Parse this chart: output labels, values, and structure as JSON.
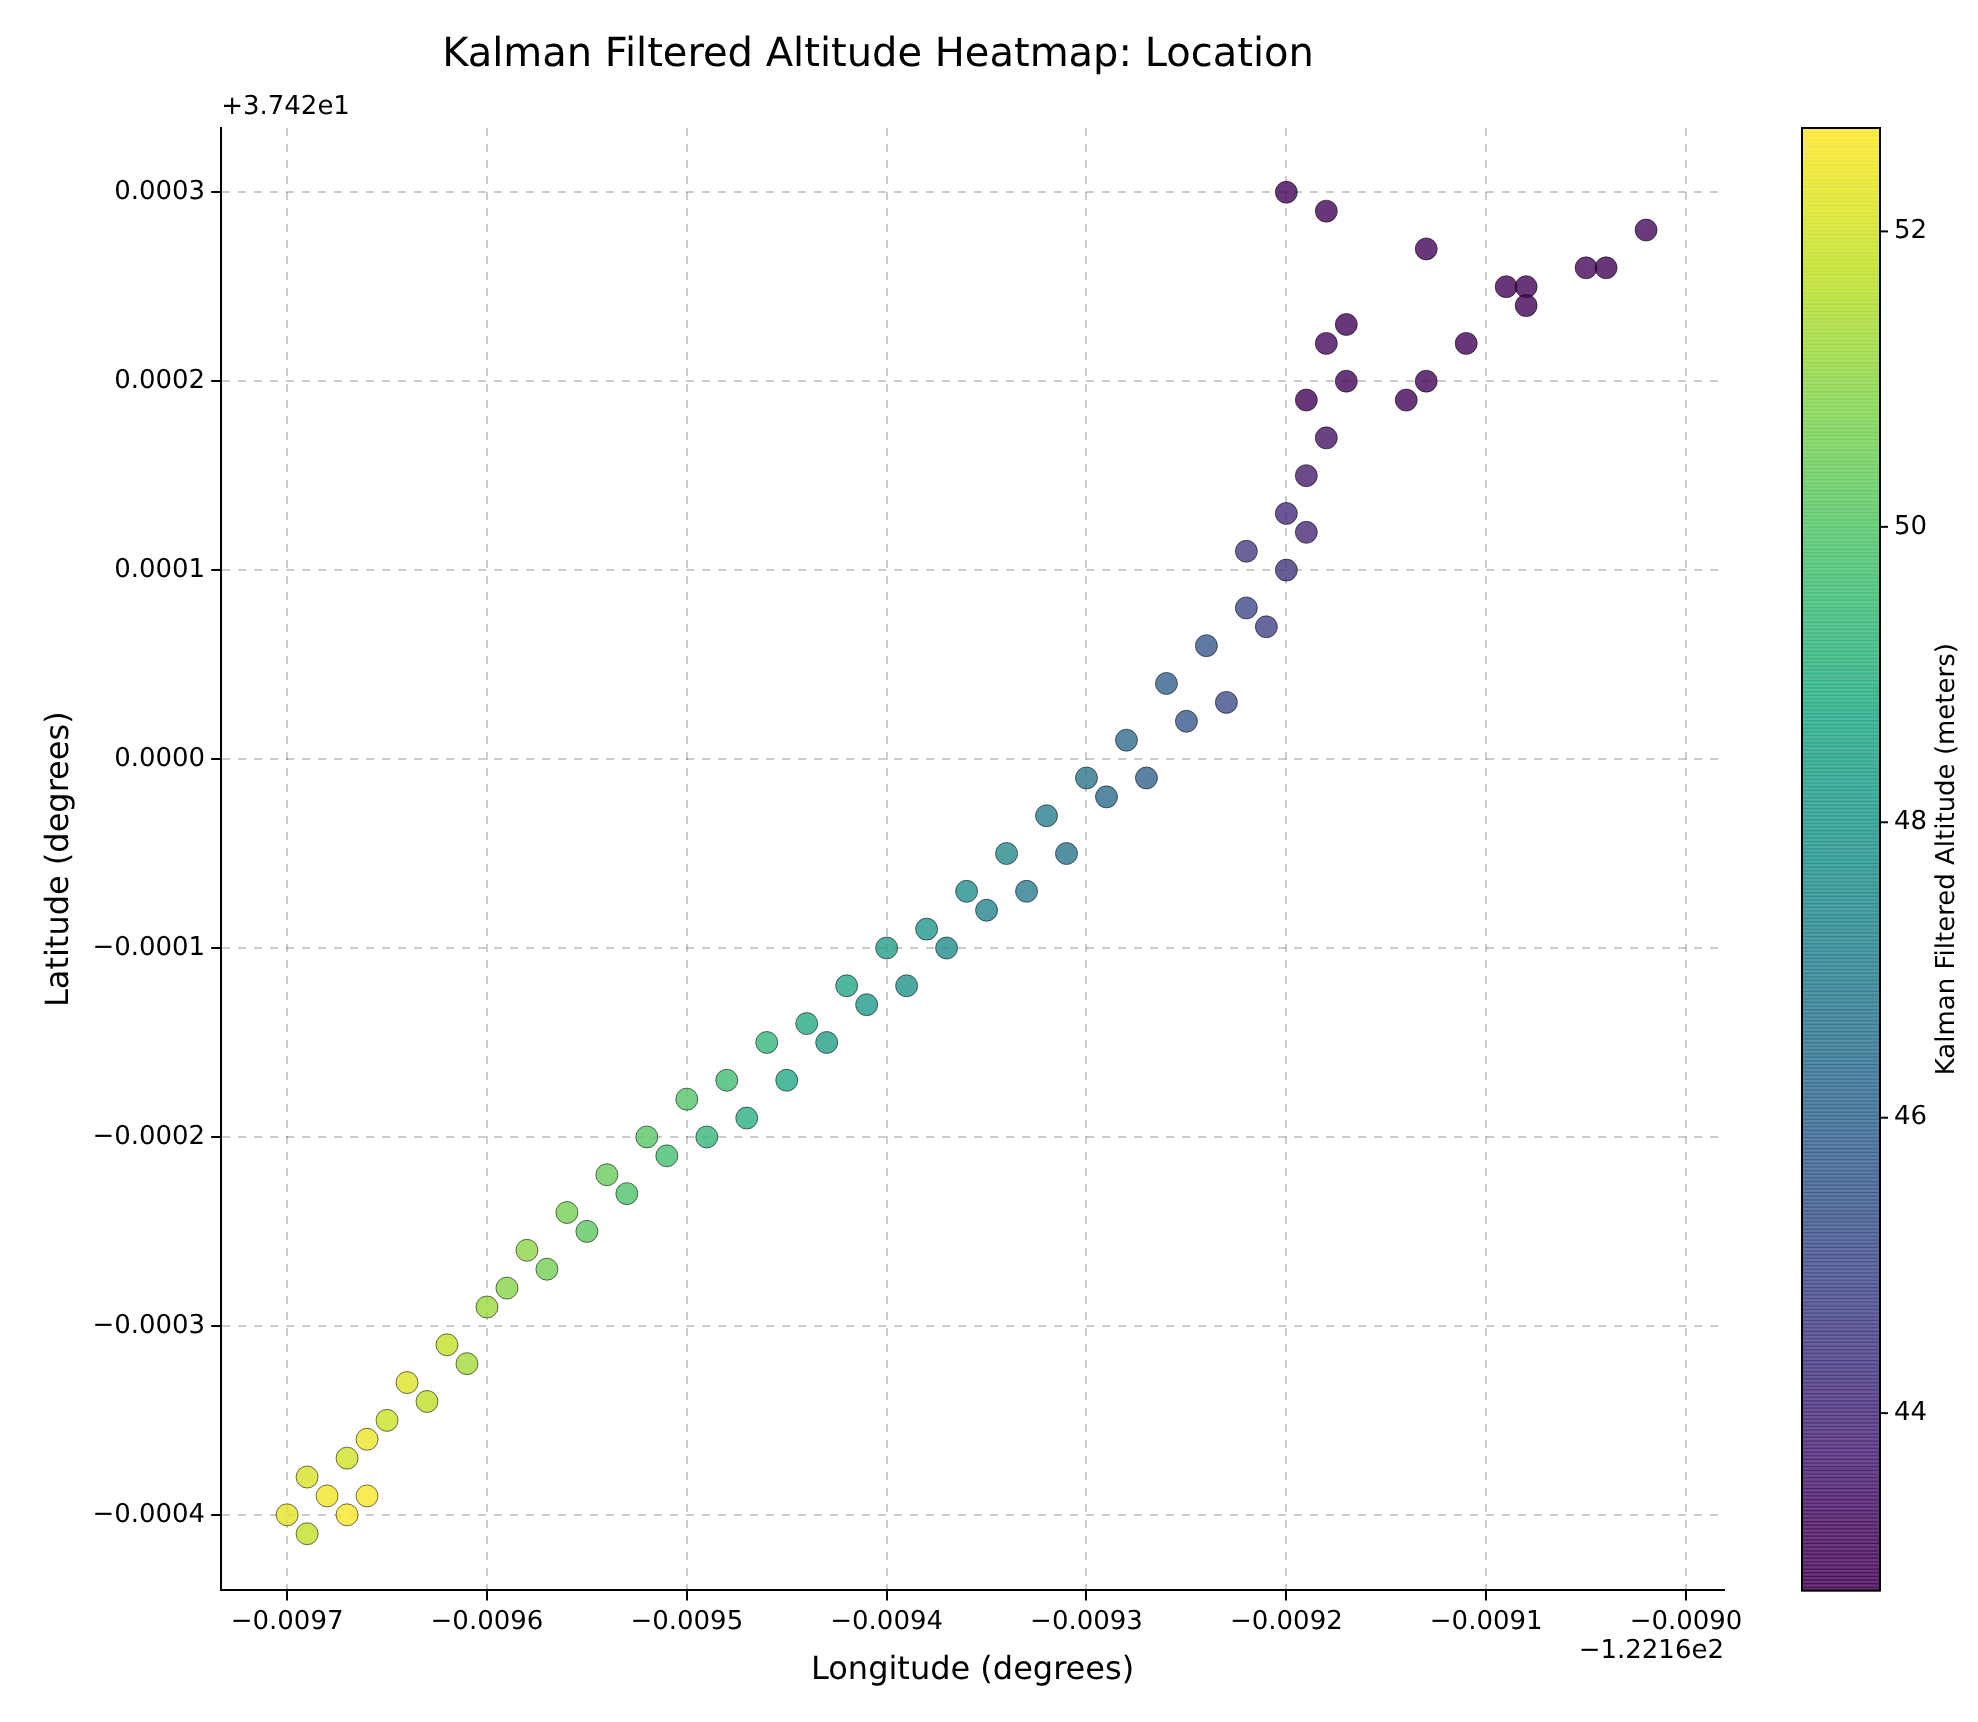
{
  "chart_data": {
    "type": "scatter",
    "title": "Kalman Filtered Altitude Heatmap: Location",
    "xlabel": "Longitude (degrees)",
    "ylabel": "Latitude (degrees)",
    "clabel": "Kalman Filtered Altitude (meters)",
    "annotations": [
      "+3.742e1",
      "−1.2216e2"
    ],
    "xlim": [
      -0.009733,
      -0.008981
    ],
    "ylim": [
      -0.00044,
      0.000334
    ],
    "xticks": [
      {
        "value": -0.0097,
        "label": "−0.0097"
      },
      {
        "value": -0.0096,
        "label": "−0.0096"
      },
      {
        "value": -0.0095,
        "label": "−0.0095"
      },
      {
        "value": -0.0094,
        "label": "−0.0094"
      },
      {
        "value": -0.0093,
        "label": "−0.0093"
      },
      {
        "value": -0.0092,
        "label": "−0.0092"
      },
      {
        "value": -0.0091,
        "label": "−0.0091"
      },
      {
        "value": -0.009,
        "label": "−0.0090"
      }
    ],
    "yticks": [
      {
        "value": -0.0004,
        "label": "−0.0004"
      },
      {
        "value": -0.0003,
        "label": "−0.0003"
      },
      {
        "value": -0.0002,
        "label": "−0.0002"
      },
      {
        "value": -0.0001,
        "label": "−0.0001"
      },
      {
        "value": 0,
        "label": "0.0000"
      },
      {
        "value": 0.0001,
        "label": "0.0001"
      },
      {
        "value": 0.0002,
        "label": "0.0002"
      },
      {
        "value": 0.0003,
        "label": "0.0003"
      }
    ],
    "clim": [
      42.8,
      52.7
    ],
    "cticks": [
      44,
      46,
      48,
      50,
      52
    ],
    "grid": true,
    "legend": false,
    "marker": "circle",
    "x": [
      -0.0097,
      -0.00969,
      -0.00968,
      -0.00967,
      -0.00969,
      -0.00967,
      -0.00966,
      -0.00966,
      -0.00965,
      -0.00964,
      -0.00963,
      -0.00962,
      -0.00961,
      -0.0096,
      -0.00959,
      -0.00958,
      -0.00957,
      -0.00956,
      -0.00955,
      -0.00954,
      -0.00953,
      -0.00952,
      -0.00951,
      -0.0095,
      -0.00949,
      -0.00948,
      -0.00947,
      -0.00946,
      -0.00945,
      -0.00944,
      -0.00943,
      -0.00942,
      -0.00941,
      -0.0094,
      -0.00939,
      -0.00938,
      -0.00937,
      -0.00936,
      -0.00935,
      -0.00934,
      -0.00933,
      -0.00932,
      -0.00931,
      -0.0093,
      -0.00929,
      -0.00928,
      -0.00927,
      -0.00926,
      -0.00925,
      -0.00924,
      -0.00923,
      -0.00922,
      -0.00921,
      -0.00922,
      -0.0092,
      -0.0092,
      -0.00919,
      -0.00919,
      -0.00918,
      -0.00919,
      -0.00917,
      -0.00918,
      -0.00917,
      -0.0092,
      -0.00918,
      -0.00914,
      -0.00913,
      -0.00913,
      -0.00911,
      -0.00909,
      -0.00908,
      -0.00908,
      -0.00905,
      -0.00904,
      -0.00902
    ],
    "values": [
      -0.0004,
      -0.00041,
      -0.00039,
      -0.0004,
      -0.00038,
      -0.00037,
      -0.00036,
      -0.00039,
      -0.00035,
      -0.00033,
      -0.00034,
      -0.00031,
      -0.00032,
      -0.00029,
      -0.00028,
      -0.00026,
      -0.00027,
      -0.00024,
      -0.00025,
      -0.00022,
      -0.00023,
      -0.0002,
      -0.00021,
      -0.00018,
      -0.0002,
      -0.00017,
      -0.00019,
      -0.00015,
      -0.00017,
      -0.00014,
      -0.00015,
      -0.00012,
      -0.00013,
      -0.0001,
      -0.00012,
      -9e-05,
      -0.0001,
      -7e-05,
      -8e-05,
      -5e-05,
      -7e-05,
      -3e-05,
      -5e-05,
      -1e-05,
      -2e-05,
      1e-05,
      -1e-05,
      4e-05,
      2e-05,
      6e-05,
      3e-05,
      8e-05,
      7e-05,
      0.00011,
      0.0001,
      0.00013,
      0.00012,
      0.00015,
      0.00017,
      0.00019,
      0.0002,
      0.00022,
      0.00023,
      0.0003,
      0.00029,
      0.00019,
      0.0002,
      0.00027,
      0.00022,
      0.00025,
      0.00025,
      0.00024,
      0.00026,
      0.00026,
      0.00028
    ],
    "cvalues": [
      52.3,
      51.8,
      52.5,
      52.6,
      52.1,
      52,
      52.4,
      52.6,
      51.9,
      52.2,
      51.7,
      51.8,
      51.3,
      51.2,
      50.9,
      51,
      50.6,
      50.6,
      50.2,
      50.4,
      49.9,
      50.1,
      49.7,
      50,
      49.3,
      49.6,
      49,
      49.3,
      48.7,
      48.8,
      48.3,
      48.6,
      48.1,
      48.3,
      47.8,
      48,
      47.5,
      47.7,
      47.2,
      47.4,
      46.9,
      47,
      46.6,
      46.6,
      46.2,
      46.3,
      45.9,
      45.9,
      45.5,
      45.5,
      45.1,
      45,
      44.7,
      44.5,
      44.3,
      44,
      43.9,
      43.6,
      43.4,
      42.9,
      42.9,
      43.1,
      42.9,
      42.9,
      42.9,
      42.9,
      42.9,
      42.9,
      42.9,
      42.9,
      42.9,
      42.9,
      43.1,
      42.9,
      43.1
    ]
  }
}
